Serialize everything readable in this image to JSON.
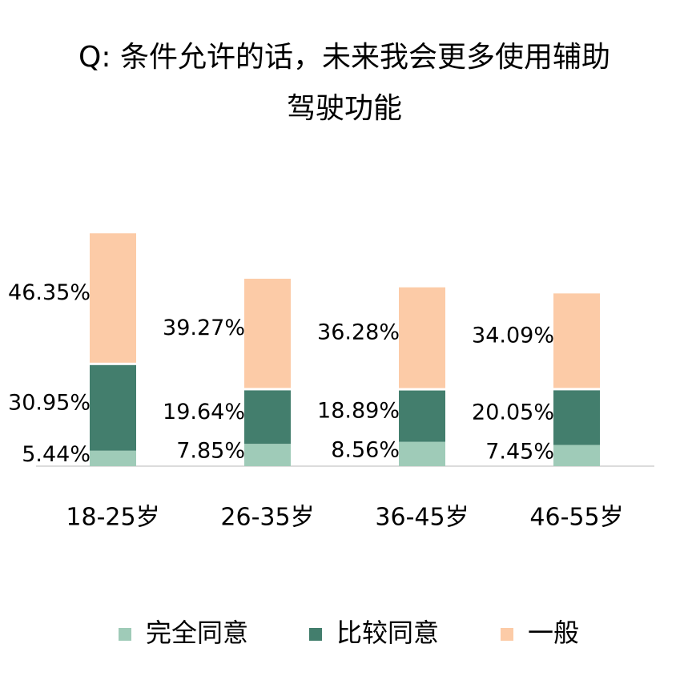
{
  "chart_data": {
    "type": "stacked-bar",
    "title": "Q:   条件允许的话，未来我会更多使用辅助驾驶功能",
    "categories": [
      "18-25岁",
      "26-35岁",
      "36-45岁",
      "46-55岁"
    ],
    "series": [
      {
        "name": "完全同意",
        "color": "#9fcbb8",
        "values": [
          5.44,
          7.85,
          8.56,
          7.45
        ],
        "value_labels": [
          "5.44%",
          "7.85%",
          "8.56%",
          "7.45%"
        ]
      },
      {
        "name": "比较同意",
        "color": "#437e6d",
        "values": [
          30.95,
          19.64,
          18.89,
          20.05
        ],
        "value_labels": [
          "30.95%",
          "19.64%",
          "18.89%",
          "20.05%"
        ]
      },
      {
        "name": "一般",
        "color": "#fccba7",
        "values": [
          46.35,
          39.27,
          36.28,
          34.09
        ],
        "value_labels": [
          "46.35%",
          "39.27%",
          "36.28%",
          "34.09%"
        ]
      }
    ]
  }
}
